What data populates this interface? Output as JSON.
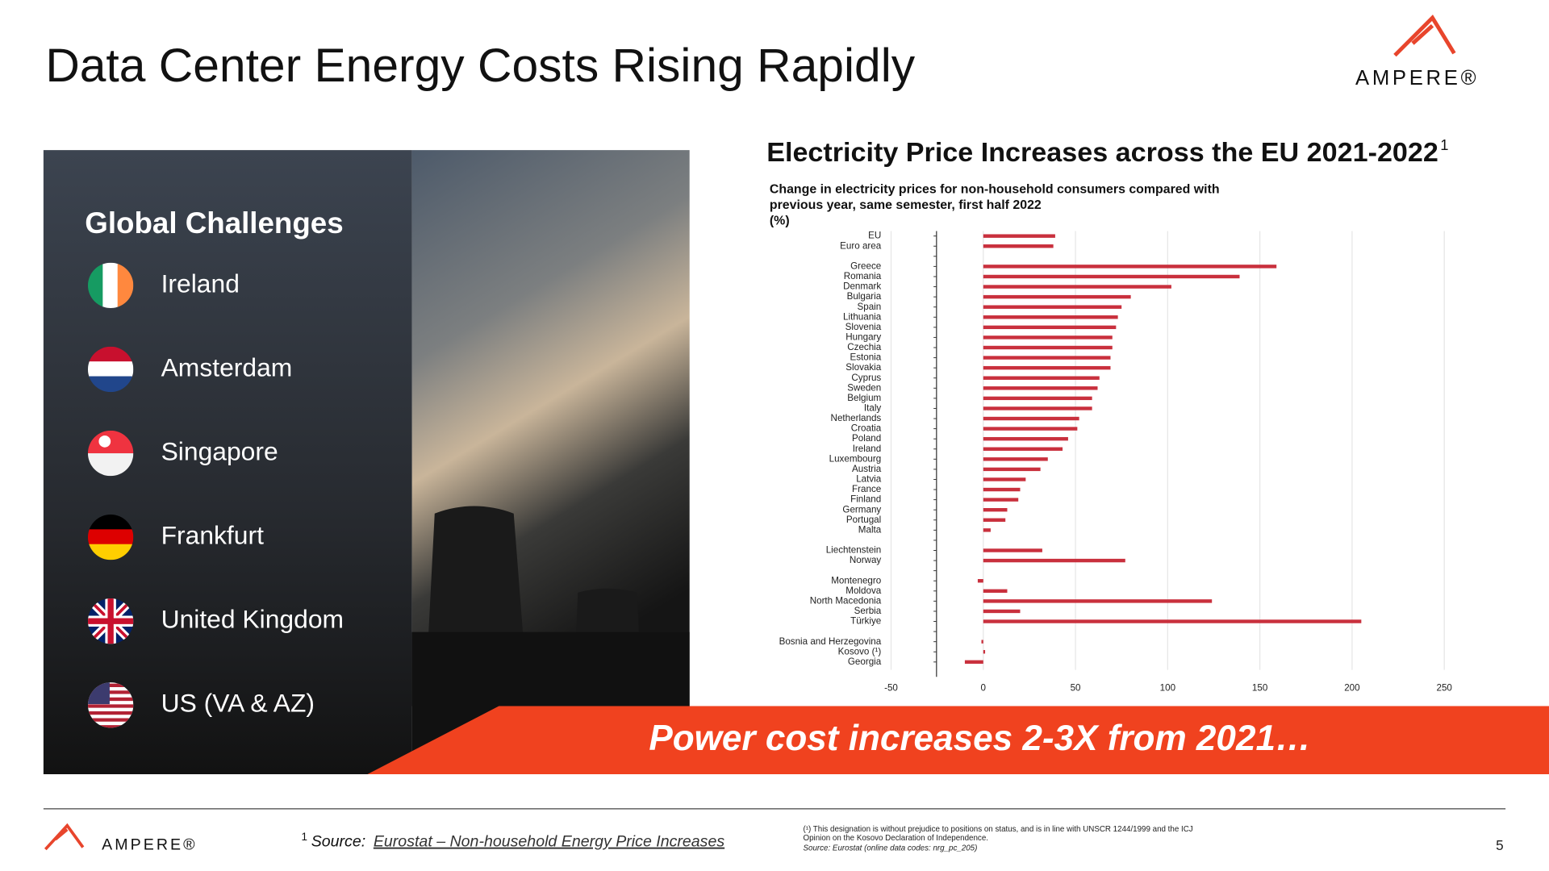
{
  "slide": {
    "title": "Data Center Energy Costs Rising Rapidly",
    "logo": "AMPERE®",
    "panel_title": "Global Challenges",
    "locations": [
      "Ireland",
      "Amsterdam",
      "Singapore",
      "Frankfurt",
      "United Kingdom",
      "US  (VA & AZ)"
    ],
    "banner": "Power cost increases 2-3X from 2021…",
    "footnote_mark": "1",
    "source_label": "Source:",
    "source_link": "Eurostat – Non-household Energy Price Increases",
    "notes": [
      "(¹) This designation is without prejudice to positions on status, and is in line with UNSCR 1244/1999 and the ICJ",
      "Opinion on the Kosovo Declaration of Independence.",
      "Source: Eurostat (online data codes: nrg_pc_205)"
    ],
    "footer_logo": "AMPERE®",
    "page_number": "5"
  },
  "chart_data": {
    "type": "hbar",
    "title": "Electricity Price Increases across the EU 2021-2022",
    "title_superscript": "1",
    "subtitle": [
      "Change in electricity prices for non-household consumers compared with",
      "previous year, same semester, first half 2022",
      "(%)"
    ],
    "categories": [
      "EU",
      "Euro area",
      null,
      "Greece",
      "Romania",
      "Denmark",
      "Bulgaria",
      "Spain",
      "Lithuania",
      "Slovenia",
      "Hungary",
      "Czechia",
      "Estonia",
      "Slovakia",
      "Cyprus",
      "Sweden",
      "Belgium",
      "Italy",
      "Netherlands",
      "Croatia",
      "Poland",
      "Ireland",
      "Luxembourg",
      "Austria",
      "Latvia",
      "France",
      "Finland",
      "Germany",
      "Portugal",
      "Malta",
      null,
      "Liechtenstein",
      "Norway",
      null,
      "Montenegro",
      "Moldova",
      "North Macedonia",
      "Serbia",
      "Türkiye",
      null,
      "Bosnia and Herzegovina",
      "Kosovo (¹)",
      "Georgia"
    ],
    "values": [
      39,
      38,
      null,
      159,
      139,
      102,
      80,
      75,
      73,
      72,
      70,
      70,
      69,
      69,
      63,
      62,
      59,
      59,
      52,
      51,
      46,
      43,
      35,
      31,
      23,
      20,
      19,
      13,
      12,
      4,
      null,
      32,
      77,
      null,
      -3,
      13,
      124,
      20,
      205,
      null,
      -1,
      1,
      -10
    ],
    "color": "#c9303d",
    "xlim": [
      -50,
      250
    ],
    "xticks": [
      -50,
      0,
      50,
      100,
      150,
      200,
      250
    ],
    "grid": true
  }
}
